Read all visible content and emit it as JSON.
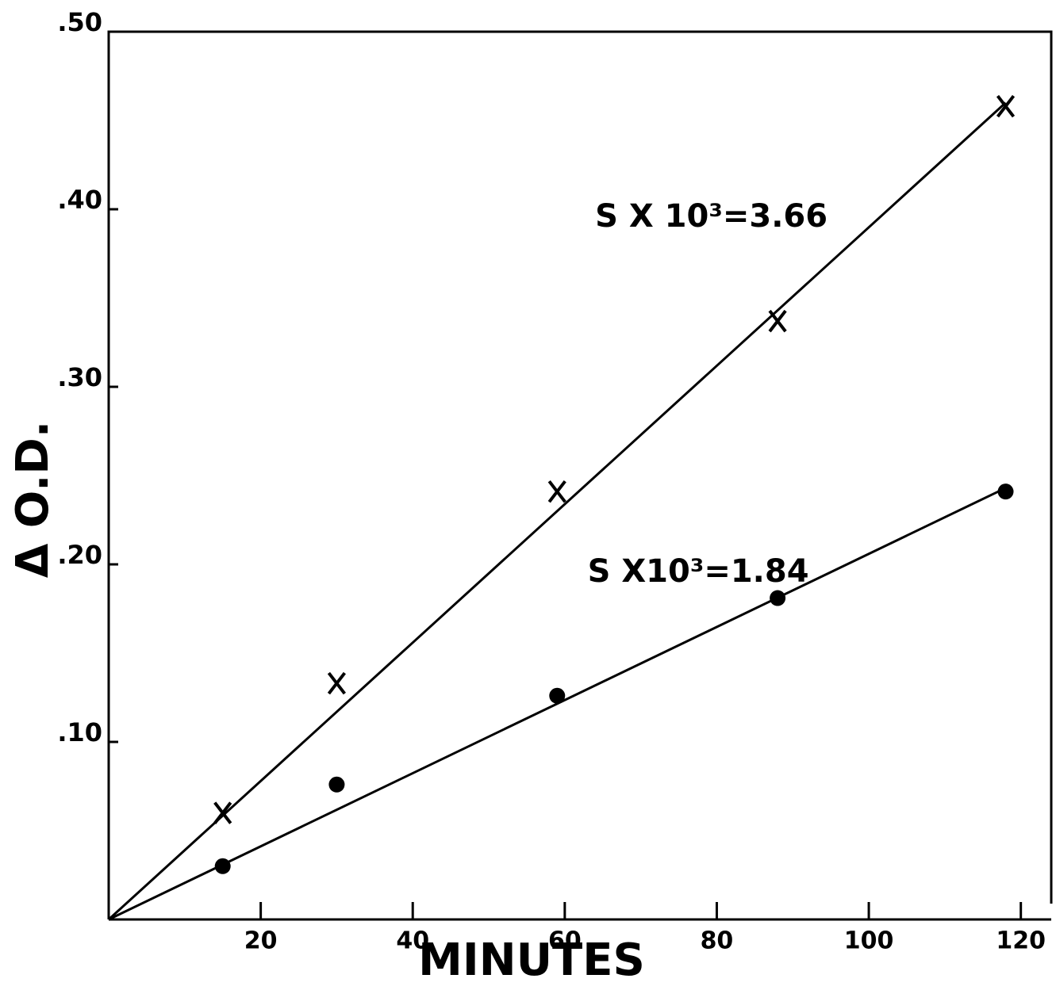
{
  "chart_data": {
    "type": "scatter",
    "x_label": "MINUTES",
    "y_label": "Δ O.D.",
    "xlim": [
      0,
      124
    ],
    "ylim": [
      0,
      0.5
    ],
    "xticks": [
      20,
      40,
      60,
      80,
      100,
      120
    ],
    "yticks": [
      {
        "value": 0.1,
        "label": ".10"
      },
      {
        "value": 0.2,
        "label": ".20"
      },
      {
        "value": 0.3,
        "label": ".30"
      },
      {
        "value": 0.4,
        "label": ".40"
      },
      {
        "value": 0.5,
        "label": ".50"
      }
    ],
    "series": [
      {
        "marker": "x",
        "color": "#000000",
        "x": [
          15,
          30,
          59,
          88,
          118
        ],
        "values": [
          0.06,
          0.133,
          0.241,
          0.337,
          0.458
        ]
      },
      {
        "marker": "dot",
        "color": "#000000",
        "x": [
          15,
          30,
          59,
          88,
          118
        ],
        "values": [
          0.03,
          0.076,
          0.126,
          0.181,
          0.241
        ]
      }
    ],
    "fit_lines": [
      {
        "x": [
          0,
          118
        ],
        "values": [
          0,
          0.46
        ]
      },
      {
        "x": [
          0,
          118
        ],
        "values": [
          0,
          0.243
        ]
      }
    ],
    "annotations": [
      {
        "text": "S X 10³=3.66",
        "x": 64,
        "y": 0.395
      },
      {
        "text": "S X10³=1.84",
        "x": 63,
        "y": 0.195
      }
    ]
  }
}
